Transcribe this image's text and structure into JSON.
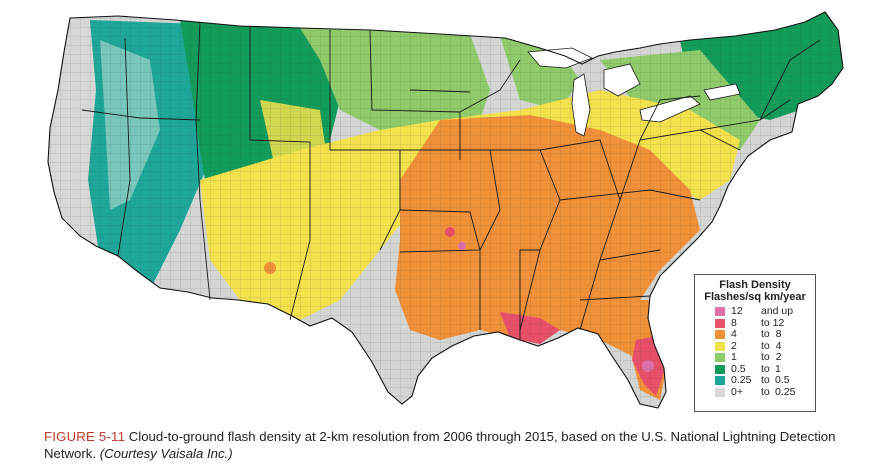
{
  "legend": {
    "title": "Flash Density",
    "subtitle": "Flashes/sq km/year",
    "items": [
      {
        "lo": "12",
        "conn": "",
        "hi": "and up",
        "color": "#e06fae"
      },
      {
        "lo": "8",
        "conn": "",
        "hi": "to 12",
        "color": "#e8506a"
      },
      {
        "lo": "4",
        "conn": "",
        "hi": "to  8",
        "color": "#f0913a"
      },
      {
        "lo": "2",
        "conn": "",
        "hi": "to  4",
        "color": "#f2e24c"
      },
      {
        "lo": "1",
        "conn": "",
        "hi": "to  2",
        "color": "#8fca6b"
      },
      {
        "lo": "0.5",
        "conn": "to",
        "hi": "1",
        "color": "#129a58"
      },
      {
        "lo": "0.25",
        "conn": "to",
        "hi": "0.5",
        "color": "#1fa79b"
      },
      {
        "lo": "0+",
        "conn": "to",
        "hi": "0.25",
        "color": "#d8d8d8"
      }
    ]
  },
  "caption": {
    "figure_label": "FIGURE 5-11",
    "text": " Cloud-to-ground flash density at 2-km resolution from 2006 through 2015, based on the U.S. National Lightning Detection Network. ",
    "credit": "(Courtesy Vaisala Inc.)"
  },
  "colors": {
    "lake_water": "#ffffff",
    "state_border": "#1a1a1a",
    "county_border": "#555555"
  }
}
